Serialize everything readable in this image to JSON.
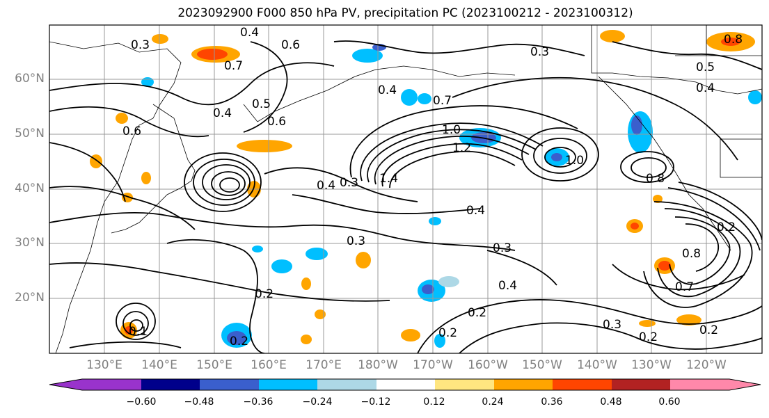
{
  "title": "2023092900 F000 850 hPa PV, precipitation PC (2023100212 - 2023100312)",
  "lat_labels": [
    "60°N",
    "50°N",
    "40°N",
    "30°N",
    "20°N"
  ],
  "lon_labels": [
    "130°E",
    "140°E",
    "150°E",
    "160°E",
    "170°E",
    "180°W",
    "170°W",
    "160°W",
    "150°W",
    "140°W",
    "130°W",
    "120°W"
  ],
  "contour_labels": [
    "0.2",
    "0.3",
    "0.4",
    "0.5",
    "0.6",
    "0.7",
    "0.8",
    "1.0",
    "1.2",
    "1.4"
  ],
  "colorbar": {
    "tick_labels": [
      "−0.60",
      "−0.48",
      "−0.36",
      "−0.24",
      "−0.12",
      "0.12",
      "0.24",
      "0.36",
      "0.48",
      "0.60"
    ],
    "colors": [
      "#9933cc",
      "#00008b",
      "#3a5fcd",
      "#00bfff",
      "#add8e6",
      "#ffffff",
      "#ffe680",
      "#ffa500",
      "#ff4500",
      "#b22222",
      "#ff88aa"
    ]
  },
  "colors": {
    "contour": "#000000",
    "grid": "#808080",
    "coast": "#000000"
  }
}
